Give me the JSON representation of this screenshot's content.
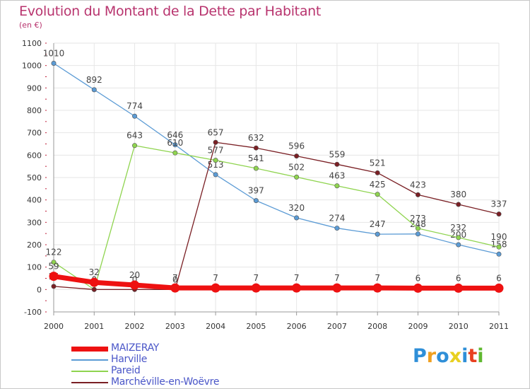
{
  "title": "Evolution du Montant de la Dette par Habitant",
  "subtitle": "(en €)",
  "logo": {
    "text": "Proxiti",
    "colors": [
      "#2f8fd8",
      "#f0a020",
      "#2f8fd8",
      "#e8d020",
      "#2f8fd8",
      "#e84020",
      "#60b830"
    ]
  },
  "chart_data": {
    "type": "line",
    "x": [
      2000,
      2001,
      2002,
      2003,
      2004,
      2005,
      2006,
      2007,
      2008,
      2009,
      2010,
      2011
    ],
    "ylim": [
      -100,
      1100
    ],
    "yticks": [
      -100,
      0,
      100,
      200,
      300,
      400,
      500,
      600,
      700,
      800,
      900,
      1000,
      1100
    ],
    "grid": true,
    "legend_position": "bottom-left",
    "series": [
      {
        "name": "Harville",
        "color": "#5b9bd5",
        "values": [
          1010,
          892,
          774,
          646,
          513,
          397,
          320,
          274,
          247,
          248,
          200,
          158
        ],
        "labels": [
          "1010",
          "892",
          "774",
          "646",
          "513",
          "397",
          "320",
          "274",
          "247",
          "248",
          "200",
          "158"
        ]
      },
      {
        "name": "Pareid",
        "color": "#8fd44f",
        "values": [
          122,
          0,
          643,
          610,
          577,
          541,
          502,
          463,
          425,
          273,
          232,
          190
        ],
        "labels": [
          "122",
          "",
          "643",
          "610",
          "577",
          "541",
          "502",
          "463",
          "425",
          "273",
          "232",
          "190"
        ]
      },
      {
        "name": "Marchéville-en-Woëvre",
        "color": "#7a1f24",
        "values": [
          14,
          0,
          0,
          0,
          657,
          632,
          596,
          559,
          521,
          423,
          380,
          337
        ],
        "labels": [
          "14",
          "0",
          "0",
          "0",
          "657",
          "632",
          "596",
          "559",
          "521",
          "423",
          "380",
          "337"
        ]
      },
      {
        "name": "MAIZERAY",
        "color": "#ee1111",
        "values": [
          59,
          32,
          20,
          7,
          7,
          7,
          7,
          7,
          7,
          6,
          6,
          6
        ],
        "labels": [
          "59",
          "32",
          "20",
          "7",
          "7",
          "7",
          "7",
          "7",
          "7",
          "6",
          "6",
          "6"
        ]
      }
    ]
  }
}
